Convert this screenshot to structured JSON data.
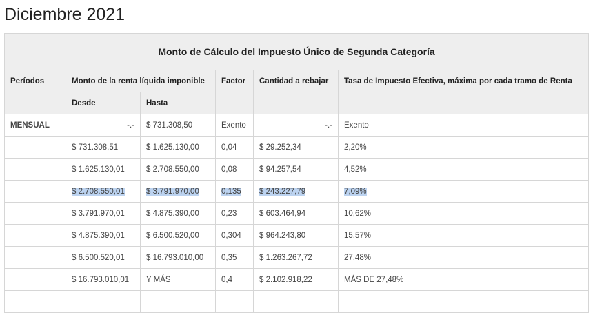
{
  "page": {
    "title": "Diciembre 2021"
  },
  "table": {
    "caption": "Monto de Cálculo del Impuesto Único de Segunda Categoría",
    "headers": {
      "periodos": "Períodos",
      "monto": "Monto de la renta líquida imponible",
      "factor": "Factor",
      "cantidad": "Cantidad a rebajar",
      "tasa": "Tasa de Impuesto Efectiva, máxima por cada tramo de Renta"
    },
    "subheaders": {
      "desde": "Desde",
      "hasta": "Hasta"
    },
    "rows": [
      {
        "periodo": "MENSUAL",
        "desde": "-.-",
        "hasta": "$ 731.308,50",
        "factor": "Exento",
        "cantidad": "-.-",
        "tasa": "Exento"
      },
      {
        "periodo": "",
        "desde": "$ 731.308,51",
        "hasta": "$ 1.625.130,00",
        "factor": "0,04",
        "cantidad": "$ 29.252,34",
        "tasa": "2,20%"
      },
      {
        "periodo": "",
        "desde": "$ 1.625.130,01",
        "hasta": "$ 2.708.550,00",
        "factor": "0,08",
        "cantidad": "$ 94.257,54",
        "tasa": "4,52%"
      },
      {
        "periodo": "",
        "desde": "$ 2.708.550,01",
        "hasta": "$ 3.791.970,00",
        "factor": "0,135",
        "cantidad": "$ 243.227,79",
        "tasa": "7,09%"
      },
      {
        "periodo": "",
        "desde": "$ 3.791.970,01",
        "hasta": "$ 4.875.390,00",
        "factor": "0,23",
        "cantidad": "$ 603.464,94",
        "tasa": "10,62%"
      },
      {
        "periodo": "",
        "desde": "$ 4.875.390,01",
        "hasta": "$ 6.500.520,00",
        "factor": "0,304",
        "cantidad": "$ 964.243,80",
        "tasa": "15,57%"
      },
      {
        "periodo": "",
        "desde": "$ 6.500.520,01",
        "hasta": "$ 16.793.010,00",
        "factor": "0,35",
        "cantidad": "$ 1.263.267,72",
        "tasa": "27,48%"
      },
      {
        "periodo": "",
        "desde": "$ 16.793.010,01",
        "hasta": "Y MÁS",
        "factor": "0,4",
        "cantidad": "$ 2.102.918,22",
        "tasa": "MÁS DE 27,48%"
      },
      {
        "periodo": "",
        "desde": "",
        "hasta": "",
        "factor": "",
        "cantidad": "",
        "tasa": ""
      }
    ]
  },
  "selection": {
    "highlighted_row": 3,
    "color": "#bcd3f0"
  }
}
